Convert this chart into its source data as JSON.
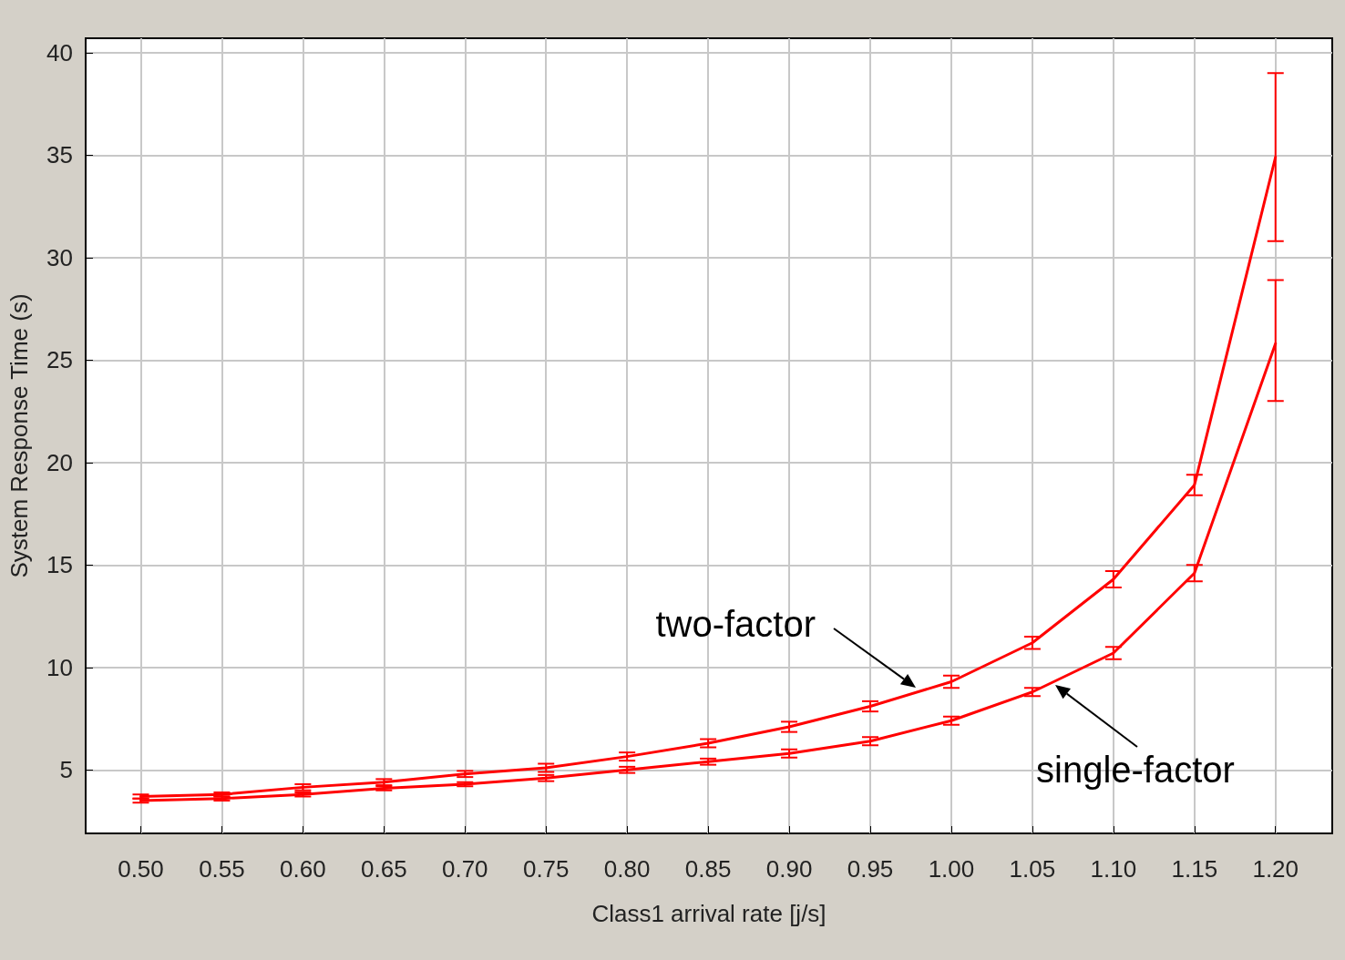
{
  "chart_data": {
    "type": "line",
    "xlabel": "Class1 arrival rate [j/s]",
    "ylabel": "System Response Time (s)",
    "x": [
      0.5,
      0.55,
      0.6,
      0.65,
      0.7,
      0.75,
      0.8,
      0.85,
      0.9,
      0.95,
      1.0,
      1.05,
      1.1,
      1.15,
      1.2
    ],
    "series": [
      {
        "color": "#ff0000",
        "values": [
          3.7,
          3.8,
          4.15,
          4.4,
          4.8,
          5.1,
          5.65,
          6.3,
          7.1,
          8.1,
          9.3,
          11.2,
          14.3,
          18.9,
          34.9
        ],
        "errors": [
          0.1,
          0.1,
          0.15,
          0.15,
          0.15,
          0.2,
          0.2,
          0.2,
          0.25,
          0.25,
          0.3,
          0.3,
          0.4,
          0.5,
          [
            30.8,
            39
          ]
        ]
      },
      {
        "color": "#ff0000",
        "values": [
          3.5,
          3.6,
          3.8,
          4.1,
          4.3,
          4.6,
          5.0,
          5.4,
          5.8,
          6.4,
          7.4,
          8.8,
          10.7,
          14.6,
          25.8
        ],
        "errors": [
          0.1,
          0.1,
          0.1,
          0.1,
          0.1,
          0.15,
          0.15,
          0.15,
          0.2,
          0.2,
          0.2,
          0.2,
          0.3,
          0.4,
          [
            23.0,
            28.9
          ]
        ]
      }
    ],
    "annotations": [
      "two-factor",
      "single-factor"
    ],
    "xlim": [
      0.466,
      1.235
    ],
    "xticks": [
      {
        "value": 0.5,
        "label": "0.50"
      },
      {
        "value": 0.55,
        "label": "0.55"
      },
      {
        "value": 0.6,
        "label": "0.60"
      },
      {
        "value": 0.65,
        "label": "0.65"
      },
      {
        "value": 0.7,
        "label": "0.70"
      },
      {
        "value": 0.75,
        "label": "0.75"
      },
      {
        "value": 0.8,
        "label": "0.80"
      },
      {
        "value": 0.85,
        "label": "0.85"
      },
      {
        "value": 0.9,
        "label": "0.90"
      },
      {
        "value": 0.95,
        "label": "0.95"
      },
      {
        "value": 1.0,
        "label": "1.00"
      },
      {
        "value": 1.05,
        "label": "1.05"
      },
      {
        "value": 1.1,
        "label": "1.10"
      },
      {
        "value": 1.15,
        "label": "1.15"
      },
      {
        "value": 1.2,
        "label": "1.20"
      }
    ],
    "ylim": [
      1.9,
      40.7
    ],
    "yticks": [
      5,
      10,
      15,
      20,
      25,
      30,
      35,
      40
    ],
    "grid": true,
    "marker": "none",
    "line_style": "solid"
  }
}
